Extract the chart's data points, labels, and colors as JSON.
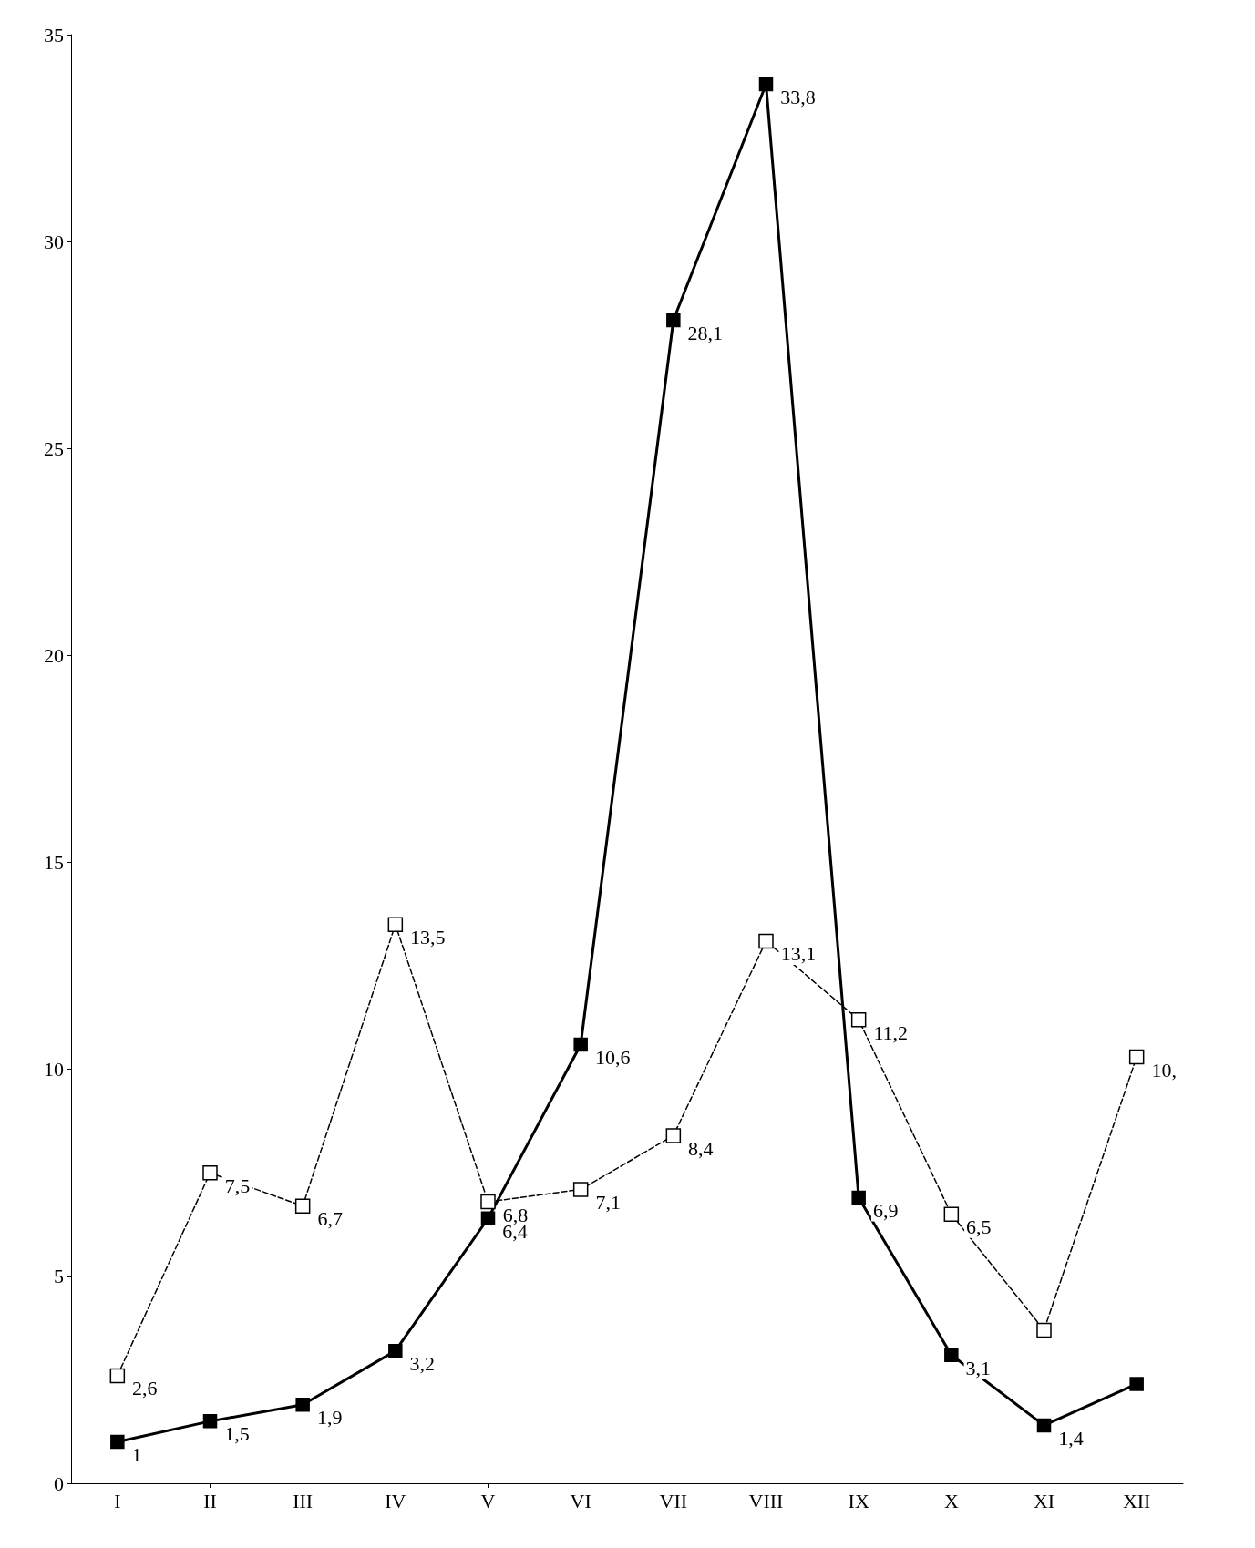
{
  "chart_data": {
    "type": "line",
    "categories": [
      "I",
      "II",
      "III",
      "IV",
      "V",
      "VI",
      "VII",
      "VIII",
      "IX",
      "X",
      "XI",
      "XII"
    ],
    "ylim": [
      0,
      35
    ],
    "yticks": [
      0,
      5,
      10,
      15,
      20,
      25,
      30,
      35
    ],
    "grid": false,
    "marker": "square",
    "series": [
      {
        "color": "#000000",
        "line_style": "solid",
        "values": [
          1,
          1.5,
          1.9,
          3.2,
          6.4,
          10.6,
          28.1,
          33.8,
          6.9,
          3.1,
          1.4,
          2.4
        ],
        "value_labels": [
          "1",
          "1,5",
          "1,9",
          "3,2",
          "6,4",
          "10,6",
          "28,1",
          "33,8",
          "6,9",
          "3,1",
          "1,4",
          null
        ]
      },
      {
        "color": "#000000",
        "line_style": "dashed",
        "values": [
          2.6,
          7.5,
          6.7,
          13.5,
          6.8,
          7.1,
          8.4,
          13.1,
          11.2,
          6.5,
          3.7,
          10.3
        ],
        "value_labels": [
          "2,6",
          "7,5",
          "6,7",
          "13,5",
          "6,8",
          "7,1",
          "8,4",
          "13,1",
          "11,2",
          "6,5",
          null,
          "10,"
        ]
      }
    ]
  }
}
